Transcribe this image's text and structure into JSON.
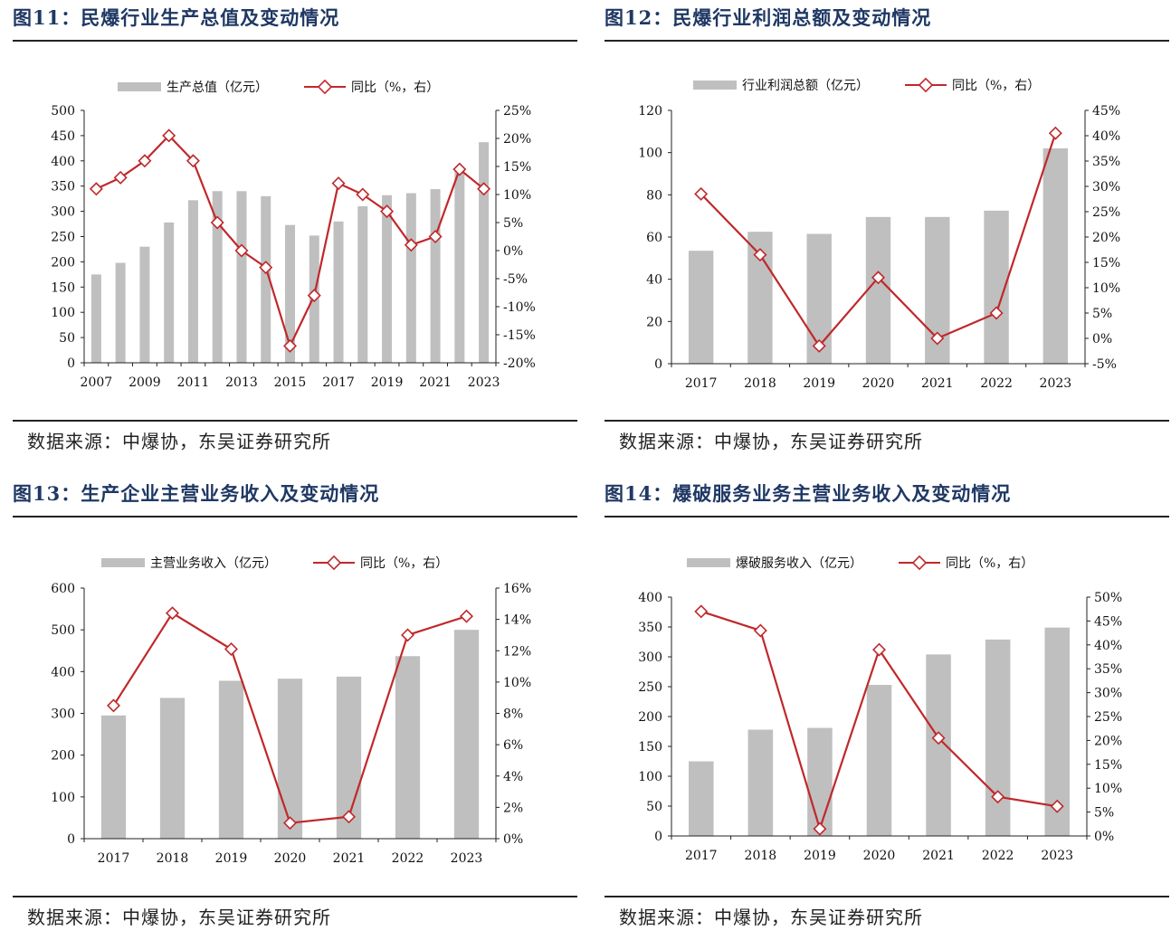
{
  "source_note": "数据来源：中爆协，东吴证券研究所",
  "colors": {
    "bar": "#bfbfbf",
    "line": "#c0282b",
    "title": "#1f3864"
  },
  "chart_data": [
    {
      "type": "bar",
      "title": "图11：民爆行业生产总值及变动情况",
      "categories": [
        "2007",
        "2008",
        "2009",
        "2010",
        "2011",
        "2012",
        "2013",
        "2014",
        "2015",
        "2016",
        "2017",
        "2018",
        "2019",
        "2020",
        "2021",
        "2022",
        "2023"
      ],
      "x_tick_labels": [
        "2007",
        "",
        "2009",
        "",
        "2011",
        "",
        "2013",
        "",
        "2015",
        "",
        "2017",
        "",
        "2019",
        "",
        "2021",
        "",
        "2023"
      ],
      "series": [
        {
          "name": "生产总值（亿元）",
          "type": "bar",
          "axis": "left",
          "values": [
            175,
            198,
            230,
            278,
            322,
            340,
            340,
            330,
            273,
            252,
            280,
            310,
            332,
            336,
            344,
            380,
            437
          ]
        },
        {
          "name": "同比（%，右）",
          "type": "line",
          "axis": "right",
          "values": [
            11,
            13,
            16,
            20.5,
            16,
            5,
            0,
            -3,
            -17,
            -8,
            12,
            10,
            7,
            1,
            2.5,
            14.5,
            11
          ]
        }
      ],
      "y_left": {
        "min": 0,
        "max": 500,
        "ticks": [
          "0",
          "50",
          "100",
          "150",
          "200",
          "250",
          "300",
          "350",
          "400",
          "450",
          "500"
        ]
      },
      "y_right": {
        "min": -20,
        "max": 25,
        "ticks": [
          "-20%",
          "-15%",
          "-10%",
          "-5%",
          "0%",
          "5%",
          "10%",
          "15%",
          "20%",
          "25%"
        ]
      },
      "legend": "top"
    },
    {
      "type": "bar",
      "title": "图12：民爆行业利润总额及变动情况",
      "categories": [
        "2017",
        "2018",
        "2019",
        "2020",
        "2021",
        "2022",
        "2023"
      ],
      "x_tick_labels": [
        "2017",
        "2018",
        "2019",
        "2020",
        "2021",
        "2022",
        "2023"
      ],
      "series": [
        {
          "name": "行业利润总额（亿元）",
          "type": "bar",
          "axis": "left",
          "values": [
            53.5,
            62.5,
            61.5,
            69.5,
            69.5,
            72.5,
            102
          ]
        },
        {
          "name": "同比（%，右）",
          "type": "line",
          "axis": "right",
          "values": [
            28.5,
            16.5,
            -1.5,
            12,
            0,
            5,
            40.5
          ]
        }
      ],
      "y_left": {
        "min": 0,
        "max": 120,
        "ticks": [
          "0",
          "20",
          "40",
          "60",
          "80",
          "100",
          "120"
        ]
      },
      "y_right": {
        "min": -5,
        "max": 45,
        "ticks": [
          "-5%",
          "0%",
          "5%",
          "10%",
          "15%",
          "20%",
          "25%",
          "30%",
          "35%",
          "40%",
          "45%"
        ]
      },
      "legend": "top"
    },
    {
      "type": "bar",
      "title": "图13：生产企业主营业务收入及变动情况",
      "categories": [
        "2017",
        "2018",
        "2019",
        "2020",
        "2021",
        "2022",
        "2023"
      ],
      "x_tick_labels": [
        "2017",
        "2018",
        "2019",
        "2020",
        "2021",
        "2022",
        "2023"
      ],
      "series": [
        {
          "name": "主营业务收入（亿元）",
          "type": "bar",
          "axis": "left",
          "values": [
            295,
            337,
            378,
            383,
            388,
            437,
            500
          ]
        },
        {
          "name": "同比（%，右）",
          "type": "line",
          "axis": "right",
          "values": [
            8.5,
            14.4,
            12.1,
            1,
            1.4,
            13,
            14.2
          ]
        }
      ],
      "y_left": {
        "min": 0,
        "max": 600,
        "ticks": [
          "0",
          "100",
          "200",
          "300",
          "400",
          "500",
          "600"
        ]
      },
      "y_right": {
        "min": 0,
        "max": 16,
        "ticks": [
          "0%",
          "2%",
          "4%",
          "6%",
          "8%",
          "10%",
          "12%",
          "14%",
          "16%"
        ]
      },
      "legend": "top"
    },
    {
      "type": "bar",
      "title": "图14：爆破服务业务主营业务收入及变动情况",
      "categories": [
        "2017",
        "2018",
        "2019",
        "2020",
        "2021",
        "2022",
        "2023"
      ],
      "x_tick_labels": [
        "2017",
        "2018",
        "2019",
        "2020",
        "2021",
        "2022",
        "2023"
      ],
      "series": [
        {
          "name": "爆破服务收入（亿元）",
          "type": "bar",
          "axis": "left",
          "values": [
            125,
            178,
            181,
            253,
            304,
            329,
            349
          ]
        },
        {
          "name": "同比（%，右）",
          "type": "line",
          "axis": "right",
          "values": [
            47,
            43,
            1.5,
            39,
            20.5,
            8.2,
            6.2
          ]
        }
      ],
      "y_left": {
        "min": 0,
        "max": 400,
        "ticks": [
          "0",
          "50",
          "100",
          "150",
          "200",
          "250",
          "300",
          "350",
          "400"
        ]
      },
      "y_right": {
        "min": 0,
        "max": 50,
        "ticks": [
          "0%",
          "5%",
          "10%",
          "15%",
          "20%",
          "25%",
          "30%",
          "35%",
          "40%",
          "45%",
          "50%"
        ]
      },
      "legend": "top"
    }
  ]
}
